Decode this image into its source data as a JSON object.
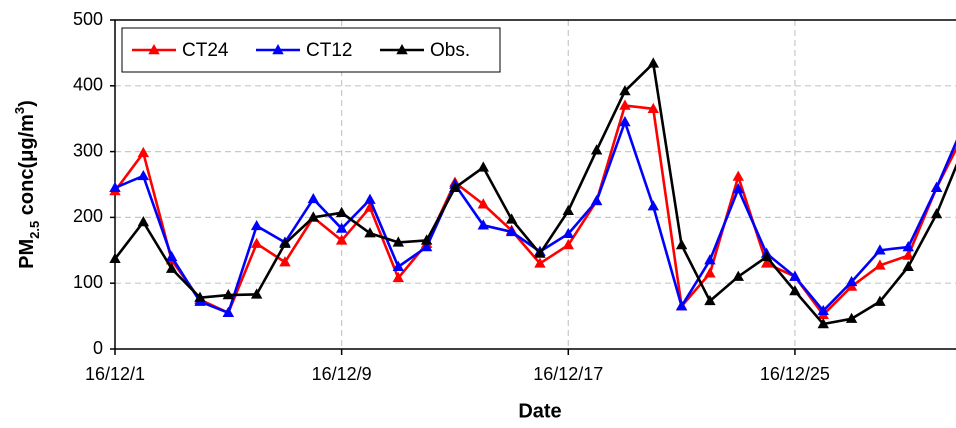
{
  "chart_data": {
    "type": "line",
    "x_label": "Date",
    "y_label_parts": [
      "PM",
      "2.5",
      " conc(μg/m",
      "3",
      ")"
    ],
    "categories": [
      "16/12/1",
      null,
      null,
      null,
      null,
      null,
      null,
      null,
      "16/12/9",
      null,
      null,
      null,
      null,
      null,
      null,
      null,
      "16/12/17",
      null,
      null,
      null,
      null,
      null,
      null,
      null,
      "16/12/25",
      null,
      null,
      null,
      null,
      null,
      null
    ],
    "series": [
      {
        "name": "CT24",
        "color": "#ff0000",
        "values": [
          240,
          298,
          135,
          75,
          55,
          160,
          132,
          200,
          165,
          215,
          108,
          160,
          253,
          220,
          180,
          130,
          158,
          225,
          370,
          365,
          65,
          115,
          262,
          130,
          110,
          52,
          95,
          127,
          142,
          245,
          330
        ]
      },
      {
        "name": "CT12",
        "color": "#0000ff",
        "values": [
          245,
          263,
          140,
          72,
          55,
          187,
          162,
          228,
          183,
          227,
          125,
          155,
          250,
          188,
          178,
          148,
          175,
          225,
          345,
          217,
          65,
          135,
          243,
          145,
          110,
          58,
          102,
          150,
          155,
          245,
          345
        ]
      },
      {
        "name": "Obs.",
        "color": "#000000",
        "values": [
          137,
          193,
          122,
          78,
          82,
          83,
          160,
          200,
          207,
          176,
          162,
          165,
          245,
          276,
          197,
          145,
          210,
          302,
          392,
          434,
          158,
          73,
          110,
          140,
          88,
          38,
          46,
          72,
          125,
          205,
          310
        ]
      }
    ],
    "ylim": [
      0,
      500
    ],
    "yticks": [
      0,
      100,
      200,
      300,
      400,
      500
    ],
    "grid": true,
    "legend": "upper left"
  }
}
